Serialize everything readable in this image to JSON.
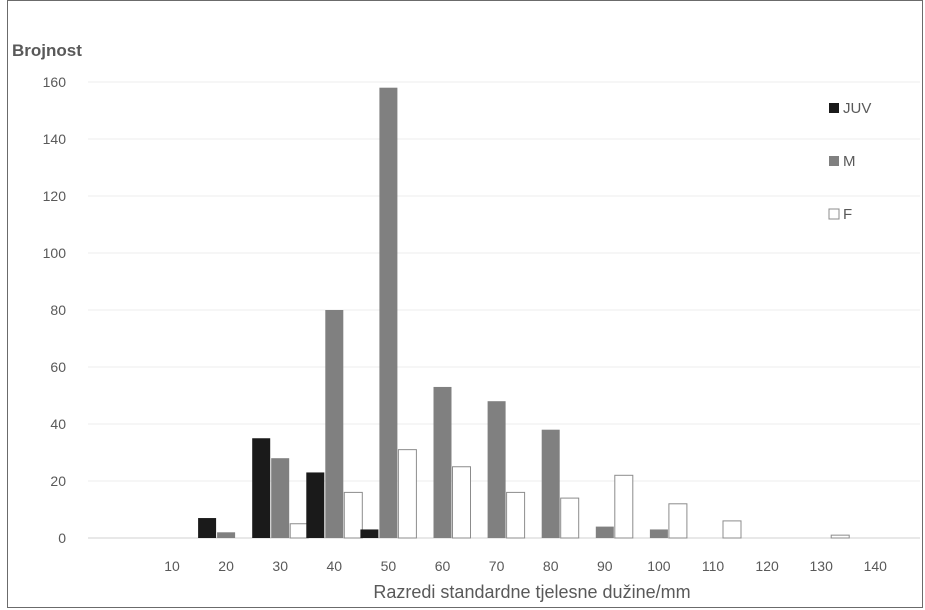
{
  "chart_data": {
    "type": "bar",
    "ylabel": "Brojnost",
    "xlabel": "Razredi standardne tjelesne dužine/mm",
    "categories": [
      "10",
      "20",
      "30",
      "40",
      "50",
      "60",
      "70",
      "80",
      "90",
      "100",
      "110",
      "120",
      "130",
      "140"
    ],
    "ylim": [
      0,
      160
    ],
    "yticks": [
      0,
      20,
      40,
      60,
      80,
      100,
      120,
      140,
      160
    ],
    "grid": true,
    "legend_position": "top-right",
    "series": [
      {
        "name": "JUV",
        "color": "#1a1a1a",
        "values": [
          0,
          7,
          35,
          23,
          3,
          0,
          0,
          0,
          0,
          0,
          0,
          0,
          0,
          0
        ]
      },
      {
        "name": "M",
        "color": "#808080",
        "values": [
          0,
          2,
          28,
          80,
          158,
          53,
          48,
          38,
          4,
          3,
          0,
          0,
          0,
          0
        ]
      },
      {
        "name": "F",
        "color": "#ffffff",
        "values": [
          0,
          0,
          5,
          16,
          31,
          25,
          16,
          14,
          22,
          12,
          6,
          0,
          1,
          0
        ]
      }
    ]
  }
}
